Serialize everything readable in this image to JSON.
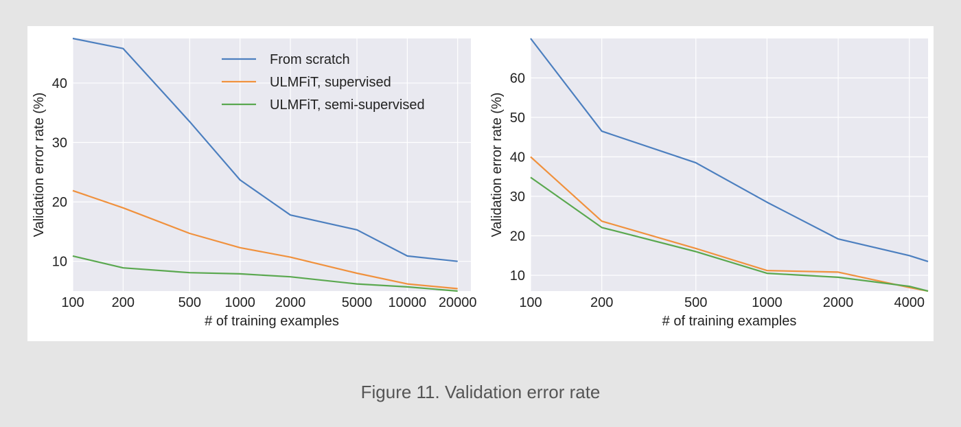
{
  "caption": "Figure 11. Validation error rate",
  "colors": {
    "series": [
      "#4c7fbf",
      "#f0913d",
      "#5aa84f"
    ],
    "plot_background": "#e9e9f0",
    "grid": "#ffffff",
    "page_background": "#e5e5e5",
    "panel_background": "#ffffff"
  },
  "chart_data": [
    {
      "type": "line",
      "xscale": "log",
      "xlabel": "# of training examples",
      "ylabel": "Validation error rate (%)",
      "xlim": [
        100,
        24000
      ],
      "ylim": [
        5,
        47.5
      ],
      "x_ticks": [
        100,
        200,
        500,
        1000,
        2000,
        5000,
        10000,
        20000
      ],
      "x_tick_labels": [
        "100",
        "200",
        "500",
        "1000",
        "2000",
        "5000",
        "10000",
        "20000"
      ],
      "y_ticks": [
        10,
        20,
        30,
        40
      ],
      "y_tick_labels": [
        "10",
        "20",
        "30",
        "40"
      ],
      "grid": true,
      "legend": {
        "position": "top-right"
      },
      "x": [
        100,
        200,
        500,
        1000,
        2000,
        5000,
        10000,
        20000
      ],
      "series": [
        {
          "name": "From scratch",
          "values": [
            47.5,
            45.8,
            33.5,
            23.7,
            17.8,
            15.3,
            10.9,
            10.0
          ]
        },
        {
          "name": "ULMFiT, supervised",
          "values": [
            21.9,
            19.0,
            14.7,
            12.3,
            10.7,
            8.0,
            6.2,
            5.4
          ]
        },
        {
          "name": "ULMFiT, semi-supervised",
          "values": [
            10.9,
            8.9,
            8.1,
            7.9,
            7.4,
            6.2,
            5.7,
            5.0
          ]
        }
      ]
    },
    {
      "type": "line",
      "xscale": "log",
      "xlabel": "# of training examples",
      "ylabel": "Validation error rate (%)",
      "xlim": [
        100,
        4800
      ],
      "ylim": [
        6,
        70
      ],
      "x_ticks": [
        100,
        200,
        500,
        1000,
        2000,
        4000
      ],
      "x_tick_labels": [
        "100",
        "200",
        "500",
        "1000",
        "2000",
        "4000"
      ],
      "y_ticks": [
        10,
        20,
        30,
        40,
        50,
        60
      ],
      "y_tick_labels": [
        "10",
        "20",
        "30",
        "40",
        "50",
        "60"
      ],
      "grid": true,
      "x": [
        100,
        200,
        500,
        1000,
        2000,
        4000,
        4800
      ],
      "series": [
        {
          "name": "From scratch",
          "values": [
            70.0,
            46.5,
            38.5,
            28.5,
            19.2,
            15.0,
            13.5
          ]
        },
        {
          "name": "ULMFiT, supervised",
          "values": [
            40.0,
            23.7,
            16.8,
            11.2,
            10.8,
            6.9,
            6.0
          ]
        },
        {
          "name": "ULMFiT, semi-supervised",
          "values": [
            34.8,
            22.1,
            16.0,
            10.5,
            9.5,
            7.2,
            6.0
          ]
        }
      ]
    }
  ]
}
